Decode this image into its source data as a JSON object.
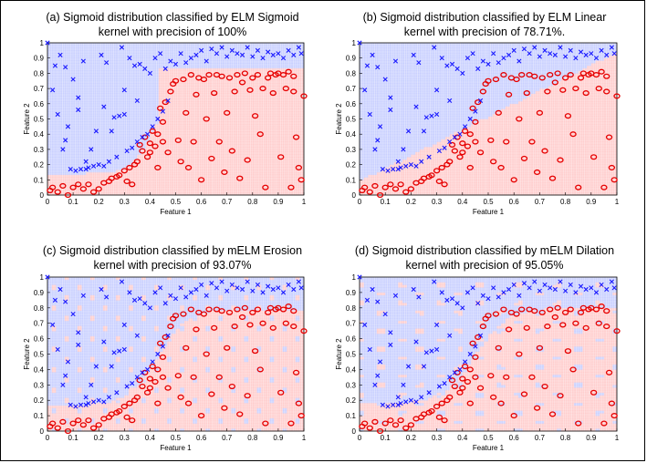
{
  "figure": {
    "panels": [
      {
        "title_line1": "(a) Sigmoid distribution classified by ELM Sigmoid",
        "title_line2": "kernel with precision of 100%"
      },
      {
        "title_line1": "(b) Sigmoid distribution classified by ELM Linear",
        "title_line2": "kernel with precision of 78.71%."
      },
      {
        "title_line1": "(c) Sigmoid distribution classified by mELM Erosion",
        "title_line2": "kernel with precision of 93.07%"
      },
      {
        "title_line1": "(d) Sigmoid distribution classified by mELM Dilation",
        "title_line2": "kernel with precision of 95.05%"
      }
    ]
  },
  "colors": {
    "class_blue": "#1a1aff",
    "class_red": "#e60000",
    "bg_blue": "#aab4ff",
    "bg_red": "#ffb0b0"
  },
  "chart_data": [
    {
      "type": "scatter",
      "title": "(a) Sigmoid distribution classified by ELM Sigmoid kernel with precision of 100%",
      "xlabel": "Feature 1",
      "ylabel": "Feature 2",
      "xlim": [
        0,
        1
      ],
      "ylim": [
        0,
        1
      ],
      "xticks": [
        "0",
        "0.1",
        "0.2",
        "0.3",
        "0.4",
        "0.5",
        "0.6",
        "0.7",
        "0.8",
        "0.9",
        "1"
      ],
      "yticks": [
        "0",
        "0.1",
        "0.2",
        "0.3",
        "0.4",
        "0.5",
        "0.6",
        "0.7",
        "0.8",
        "0.9",
        "1"
      ],
      "background": "decision regions (blue / red mesh)",
      "precision": "100%"
    },
    {
      "type": "scatter",
      "title": "(b) Sigmoid distribution classified by ELM Linear kernel with precision of 78.71%.",
      "xlabel": "Feature 1",
      "ylabel": "Feature 2",
      "xlim": [
        0,
        1
      ],
      "ylim": [
        0,
        1
      ],
      "xticks": [
        "0",
        "0.1",
        "0.2",
        "0.3",
        "0.4",
        "0.5",
        "0.6",
        "0.7",
        "0.8",
        "0.9",
        "1"
      ],
      "yticks": [
        "0",
        "0.1",
        "0.2",
        "0.3",
        "0.4",
        "0.5",
        "0.6",
        "0.7",
        "0.8",
        "0.9",
        "1"
      ],
      "background": "decision regions (blue / red mesh)",
      "precision": "78.71%"
    },
    {
      "type": "scatter",
      "title": "(c) Sigmoid distribution classified by mELM Erosion kernel with precision of 93.07%",
      "xlabel": "Feature 1",
      "ylabel": "Feature 2",
      "xlim": [
        0,
        1
      ],
      "ylim": [
        0,
        1
      ],
      "xticks": [
        "0",
        "0.1",
        "0.2",
        "0.3",
        "0.4",
        "0.5",
        "0.6",
        "0.7",
        "0.8",
        "0.9",
        "1"
      ],
      "yticks": [
        "0",
        "0.1",
        "0.2",
        "0.3",
        "0.4",
        "0.5",
        "0.6",
        "0.7",
        "0.8",
        "0.9",
        "1"
      ],
      "background": "decision regions (blue / red mesh)",
      "precision": "93.07%"
    },
    {
      "type": "scatter",
      "title": "(d) Sigmoid distribution classified by mELM Dilation kernel with precision of 95.05%",
      "xlabel": "Feature 1",
      "ylabel": "Feature 2",
      "xlim": [
        0,
        1
      ],
      "ylim": [
        0,
        1
      ],
      "xticks": [
        "0",
        "0.1",
        "0.2",
        "0.3",
        "0.4",
        "0.5",
        "0.6",
        "0.7",
        "0.8",
        "0.9",
        "1"
      ],
      "yticks": [
        "0",
        "0.1",
        "0.2",
        "0.3",
        "0.4",
        "0.5",
        "0.6",
        "0.7",
        "0.8",
        "0.9",
        "1"
      ],
      "background": "decision regions (blue / red mesh)",
      "precision": "95.05%"
    }
  ],
  "points": {
    "class_x": [
      [
        0.0,
        1.0
      ],
      [
        0.02,
        0.69
      ],
      [
        0.03,
        0.85
      ],
      [
        0.04,
        0.53
      ],
      [
        0.05,
        0.92
      ],
      [
        0.06,
        0.3
      ],
      [
        0.07,
        0.84
      ],
      [
        0.08,
        0.45
      ],
      [
        0.09,
        0.17
      ],
      [
        0.1,
        0.76
      ],
      [
        0.11,
        0.16
      ],
      [
        0.12,
        0.56
      ],
      [
        0.13,
        0.17
      ],
      [
        0.14,
        0.88
      ],
      [
        0.15,
        0.17
      ],
      [
        0.16,
        0.18
      ],
      [
        0.17,
        0.3
      ],
      [
        0.18,
        0.19
      ],
      [
        0.19,
        0.42
      ],
      [
        0.2,
        0.2
      ],
      [
        0.21,
        0.92
      ],
      [
        0.22,
        0.19
      ],
      [
        0.23,
        0.87
      ],
      [
        0.24,
        0.22
      ],
      [
        0.25,
        0.42
      ],
      [
        0.26,
        0.51
      ],
      [
        0.27,
        0.25
      ],
      [
        0.28,
        0.52
      ],
      [
        0.29,
        0.97
      ],
      [
        0.3,
        0.53
      ],
      [
        0.31,
        0.29
      ],
      [
        0.32,
        0.9
      ],
      [
        0.33,
        0.31
      ],
      [
        0.34,
        0.85
      ],
      [
        0.35,
        0.35
      ],
      [
        0.36,
        0.86
      ],
      [
        0.37,
        0.38
      ],
      [
        0.38,
        0.83
      ],
      [
        0.39,
        0.4
      ],
      [
        0.4,
        0.8
      ],
      [
        0.41,
        0.45
      ],
      [
        0.42,
        0.9
      ],
      [
        0.43,
        0.5
      ],
      [
        0.44,
        0.93
      ],
      [
        0.45,
        0.55
      ],
      [
        0.46,
        0.83
      ],
      [
        0.47,
        0.62
      ],
      [
        0.48,
        0.88
      ],
      [
        0.5,
        0.86
      ],
      [
        0.52,
        0.93
      ],
      [
        0.54,
        0.87
      ],
      [
        0.56,
        0.9
      ],
      [
        0.58,
        0.92
      ],
      [
        0.6,
        0.95
      ],
      [
        0.62,
        0.88
      ],
      [
        0.64,
        0.96
      ],
      [
        0.66,
        0.93
      ],
      [
        0.68,
        0.97
      ],
      [
        0.7,
        0.91
      ],
      [
        0.72,
        0.95
      ],
      [
        0.74,
        0.93
      ],
      [
        0.76,
        0.92
      ],
      [
        0.78,
        0.97
      ],
      [
        0.8,
        0.91
      ],
      [
        0.82,
        0.95
      ],
      [
        0.84,
        0.9
      ],
      [
        0.86,
        0.94
      ],
      [
        0.88,
        0.92
      ],
      [
        0.9,
        0.93
      ],
      [
        0.92,
        0.9
      ],
      [
        0.94,
        0.95
      ],
      [
        0.96,
        0.92
      ],
      [
        0.98,
        0.97
      ],
      [
        0.99,
        0.93
      ],
      [
        0.07,
        0.36
      ],
      [
        0.12,
        0.64
      ],
      [
        0.22,
        0.58
      ],
      [
        0.3,
        0.69
      ],
      [
        0.35,
        0.62
      ],
      [
        0.15,
        0.22
      ]
    ],
    "class_o": [
      [
        0.01,
        0.03
      ],
      [
        0.02,
        0.05
      ],
      [
        0.04,
        0.02
      ],
      [
        0.06,
        0.06
      ],
      [
        0.08,
        0.0
      ],
      [
        0.1,
        0.05
      ],
      [
        0.12,
        0.07
      ],
      [
        0.14,
        0.04
      ],
      [
        0.16,
        0.07
      ],
      [
        0.18,
        0.02
      ],
      [
        0.2,
        0.04
      ],
      [
        0.22,
        0.08
      ],
      [
        0.24,
        0.09
      ],
      [
        0.25,
        0.11
      ],
      [
        0.27,
        0.12
      ],
      [
        0.28,
        0.13
      ],
      [
        0.3,
        0.16
      ],
      [
        0.31,
        0.09
      ],
      [
        0.32,
        0.18
      ],
      [
        0.33,
        0.07
      ],
      [
        0.34,
        0.2
      ],
      [
        0.35,
        0.22
      ],
      [
        0.36,
        0.33
      ],
      [
        0.37,
        0.29
      ],
      [
        0.38,
        0.38
      ],
      [
        0.39,
        0.25
      ],
      [
        0.4,
        0.34
      ],
      [
        0.41,
        0.42
      ],
      [
        0.42,
        0.32
      ],
      [
        0.43,
        0.18
      ],
      [
        0.44,
        0.57
      ],
      [
        0.45,
        0.35
      ],
      [
        0.46,
        0.61
      ],
      [
        0.47,
        0.28
      ],
      [
        0.48,
        0.68
      ],
      [
        0.49,
        0.73
      ],
      [
        0.5,
        0.75
      ],
      [
        0.51,
        0.36
      ],
      [
        0.52,
        0.22
      ],
      [
        0.53,
        0.76
      ],
      [
        0.54,
        0.54
      ],
      [
        0.55,
        0.18
      ],
      [
        0.56,
        0.79
      ],
      [
        0.57,
        0.35
      ],
      [
        0.58,
        0.66
      ],
      [
        0.59,
        0.77
      ],
      [
        0.6,
        0.1
      ],
      [
        0.61,
        0.76
      ],
      [
        0.62,
        0.5
      ],
      [
        0.63,
        0.79
      ],
      [
        0.64,
        0.24
      ],
      [
        0.65,
        0.67
      ],
      [
        0.66,
        0.79
      ],
      [
        0.67,
        0.35
      ],
      [
        0.68,
        0.78
      ],
      [
        0.69,
        0.15
      ],
      [
        0.7,
        0.54
      ],
      [
        0.71,
        0.77
      ],
      [
        0.72,
        0.29
      ],
      [
        0.73,
        0.68
      ],
      [
        0.74,
        0.79
      ],
      [
        0.75,
        0.11
      ],
      [
        0.76,
        0.74
      ],
      [
        0.77,
        0.8
      ],
      [
        0.78,
        0.23
      ],
      [
        0.79,
        0.69
      ],
      [
        0.8,
        0.77
      ],
      [
        0.81,
        0.52
      ],
      [
        0.82,
        0.79
      ],
      [
        0.83,
        0.4
      ],
      [
        0.84,
        0.7
      ],
      [
        0.85,
        0.05
      ],
      [
        0.86,
        0.77
      ],
      [
        0.87,
        0.8
      ],
      [
        0.88,
        0.67
      ],
      [
        0.89,
        0.79
      ],
      [
        0.9,
        0.8
      ],
      [
        0.91,
        0.25
      ],
      [
        0.92,
        0.79
      ],
      [
        0.93,
        0.7
      ],
      [
        0.94,
        0.81
      ],
      [
        0.95,
        0.05
      ],
      [
        0.96,
        0.78
      ],
      [
        0.97,
        0.38
      ],
      [
        0.98,
        0.18
      ],
      [
        0.99,
        0.1
      ],
      [
        1.0,
        0.65
      ],
      [
        0.96,
        0.68
      ],
      [
        0.43,
        0.4
      ],
      [
        0.45,
        0.48
      ],
      [
        0.4,
        0.28
      ]
    ]
  }
}
